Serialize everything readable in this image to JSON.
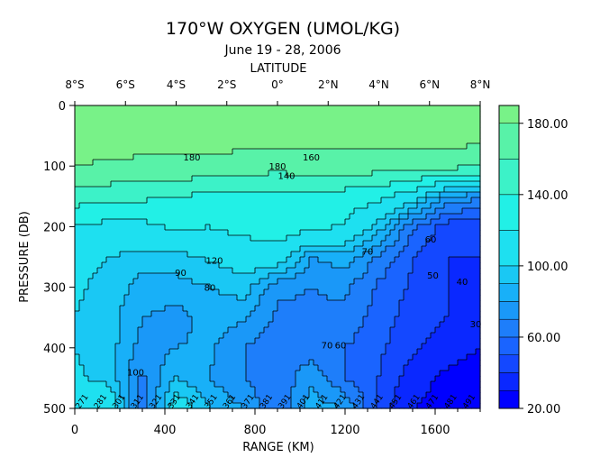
{
  "chart_data": {
    "type": "heatmap",
    "title": "170°W OXYGEN (UMOL/KG)",
    "subtitle": "June 19 - 28, 2006",
    "top_axis": {
      "label": "LATITUDE",
      "ticks": [
        "8°S",
        "6°S",
        "4°S",
        "2°S",
        "0°",
        "2°N",
        "4°N",
        "6°N",
        "8°N"
      ]
    },
    "xlabel": "RANGE (KM)",
    "xlim": [
      0,
      1800
    ],
    "xticks": [
      0,
      400,
      800,
      1200,
      1600
    ],
    "ylabel": "PRESSURE (DB)",
    "ylim": [
      0,
      500
    ],
    "y_inverted": true,
    "yticks": [
      0,
      100,
      200,
      300,
      400,
      500
    ],
    "colorbar": {
      "levels": [
        20,
        30,
        40,
        50,
        60,
        70,
        80,
        90,
        100,
        120,
        140,
        160,
        180,
        190
      ],
      "tick_labels": [
        "20.00",
        "60.00",
        "100.00",
        "140.00",
        "180.00"
      ],
      "tick_values": [
        20,
        60,
        100,
        140,
        180
      ],
      "colors": [
        "#0000ff",
        "#0a28ff",
        "#1448ff",
        "#1a64ff",
        "#1e7efa",
        "#1a98f8",
        "#18b0f8",
        "#1ac8f4",
        "#1ee0f0",
        "#22f0e6",
        "#3cf2c8",
        "#58f2a8",
        "#78f288"
      ]
    },
    "contour_labels": [
      "180",
      "160",
      "180",
      "140",
      "120",
      "90",
      "80",
      "70",
      "60",
      "50",
      "40",
      "30",
      "100",
      "70",
      "60"
    ],
    "station_labels": [
      "271",
      "281",
      "301",
      "311",
      "321",
      "331",
      "341",
      "351",
      "361",
      "371",
      "381",
      "391",
      "401",
      "411",
      "421",
      "431",
      "441",
      "451",
      "461",
      "471",
      "481",
      "491"
    ],
    "grid_x": [
      0,
      150,
      300,
      450,
      600,
      750,
      900,
      1050,
      1200,
      1350,
      1500,
      1650,
      1800
    ],
    "grid_y": [
      0,
      50,
      100,
      150,
      200,
      250,
      300,
      350,
      400,
      450,
      500
    ],
    "z": [
      [
        190,
        190,
        190,
        190,
        190,
        190,
        190,
        190,
        190,
        190,
        190,
        190,
        190
      ],
      [
        188,
        188,
        188,
        188,
        188,
        188,
        188,
        188,
        188,
        188,
        188,
        188,
        188
      ],
      [
        180,
        178,
        176,
        176,
        174,
        172,
        165,
        172,
        172,
        170,
        168,
        165,
        164
      ],
      [
        150,
        148,
        144,
        140,
        136,
        134,
        138,
        138,
        130,
        125,
        108,
        80,
        72
      ],
      [
        118,
        114,
        114,
        124,
        120,
        126,
        130,
        125,
        118,
        95,
        62,
        45,
        40
      ],
      [
        105,
        100,
        95,
        96,
        102,
        108,
        112,
        80,
        86,
        68,
        50,
        40,
        40
      ],
      [
        102,
        96,
        86,
        86,
        90,
        95,
        72,
        70,
        72,
        58,
        48,
        40,
        38
      ],
      [
        100,
        95,
        80,
        76,
        84,
        82,
        68,
        68,
        68,
        55,
        45,
        40,
        38
      ],
      [
        100,
        95,
        76,
        80,
        82,
        70,
        64,
        64,
        60,
        52,
        42,
        35,
        30
      ],
      [
        102,
        96,
        68,
        90,
        80,
        70,
        62,
        78,
        60,
        50,
        34,
        28,
        22
      ],
      [
        120,
        115,
        60,
        110,
        90,
        80,
        60,
        85,
        80,
        46,
        30,
        26,
        22
      ]
    ]
  }
}
